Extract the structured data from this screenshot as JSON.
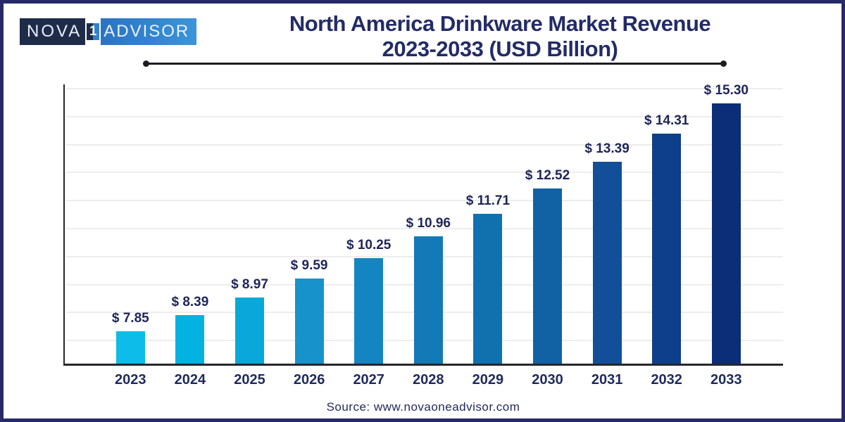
{
  "logo": {
    "nova": "NOVA",
    "one": "1",
    "advisor": "ADVISOR"
  },
  "title_line1": "North America Drinkware Market Revenue",
  "title_line2": "2023-2033 (USD Billion)",
  "source": "Source: www.novaoneadvisor.com",
  "palette": {
    "text_navy": "#232b66",
    "page_border": "#262a68",
    "axis": "#26262b",
    "gridline": "#ededed",
    "rule": "#1b1b22",
    "logo_dark_bg": "#1e2c49",
    "logo_blue_bg": "#2f83cd"
  },
  "chart_data": {
    "type": "bar",
    "title": "North America Drinkware Market Revenue 2023-2033 (USD Billion)",
    "unit": "USD Billion",
    "categories": [
      "2023",
      "2024",
      "2025",
      "2026",
      "2027",
      "2028",
      "2029",
      "2030",
      "2031",
      "2032",
      "2033"
    ],
    "values": [
      7.85,
      8.39,
      8.97,
      9.59,
      10.25,
      10.96,
      11.71,
      12.52,
      13.39,
      14.31,
      15.3
    ],
    "value_labels": [
      "$ 7.85",
      "$ 8.39",
      "$ 8.97",
      "$ 9.59",
      "$ 10.25",
      "$ 10.96",
      "$ 11.71",
      "$ 12.52",
      "$ 13.39",
      "$ 14.31",
      "$ 15.30"
    ],
    "bar_colors": [
      "#0dbce8",
      "#04b2e2",
      "#0aa8da",
      "#1792cb",
      "#1585c2",
      "#1379b7",
      "#1170ae",
      "#1062a5",
      "#134f98",
      "#0e3f8a",
      "#0c2e78"
    ],
    "xlabel": "",
    "ylabel": "",
    "ylim": [
      6.8,
      16.0
    ],
    "y_axis_tick_labels_visible": false,
    "grid": "horizontal-light",
    "legend": "none"
  }
}
